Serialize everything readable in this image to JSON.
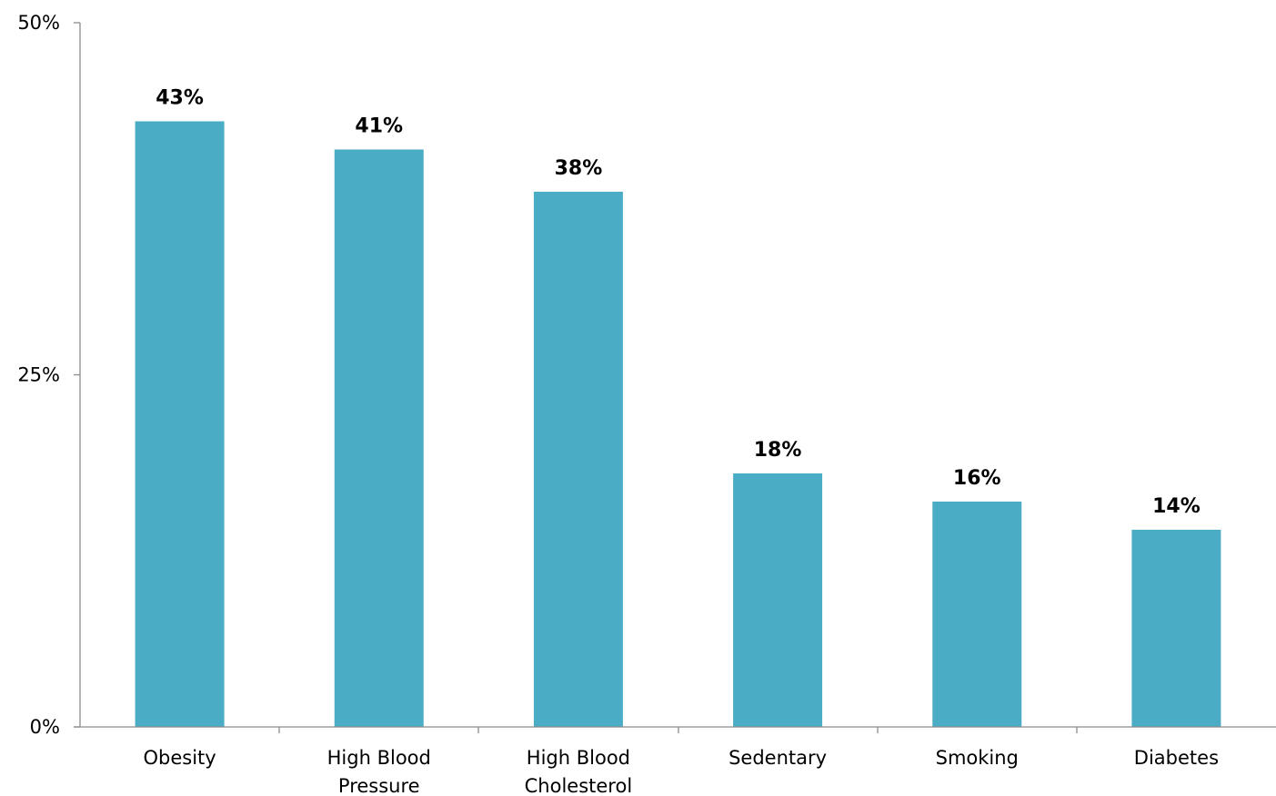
{
  "chart_data": {
    "type": "bar",
    "categories": [
      [
        "Obesity"
      ],
      [
        "High Blood",
        "Pressure"
      ],
      [
        "High Blood",
        "Cholesterol"
      ],
      [
        "Sedentary"
      ],
      [
        "Smoking"
      ],
      [
        "Diabetes"
      ]
    ],
    "values": [
      43,
      41,
      38,
      18,
      16,
      14
    ],
    "data_labels": [
      "43%",
      "41%",
      "38%",
      "18%",
      "16%",
      "14%"
    ],
    "ylim": [
      0,
      50
    ],
    "yticks": [
      0,
      25,
      50
    ],
    "ytick_labels": [
      "0%",
      "25%",
      "50%"
    ],
    "title": "",
    "xlabel": "",
    "ylabel": "",
    "grid": false,
    "legend": "none",
    "colors": {
      "bar": "#4bacc6",
      "axis": "#8c8c8c"
    }
  }
}
